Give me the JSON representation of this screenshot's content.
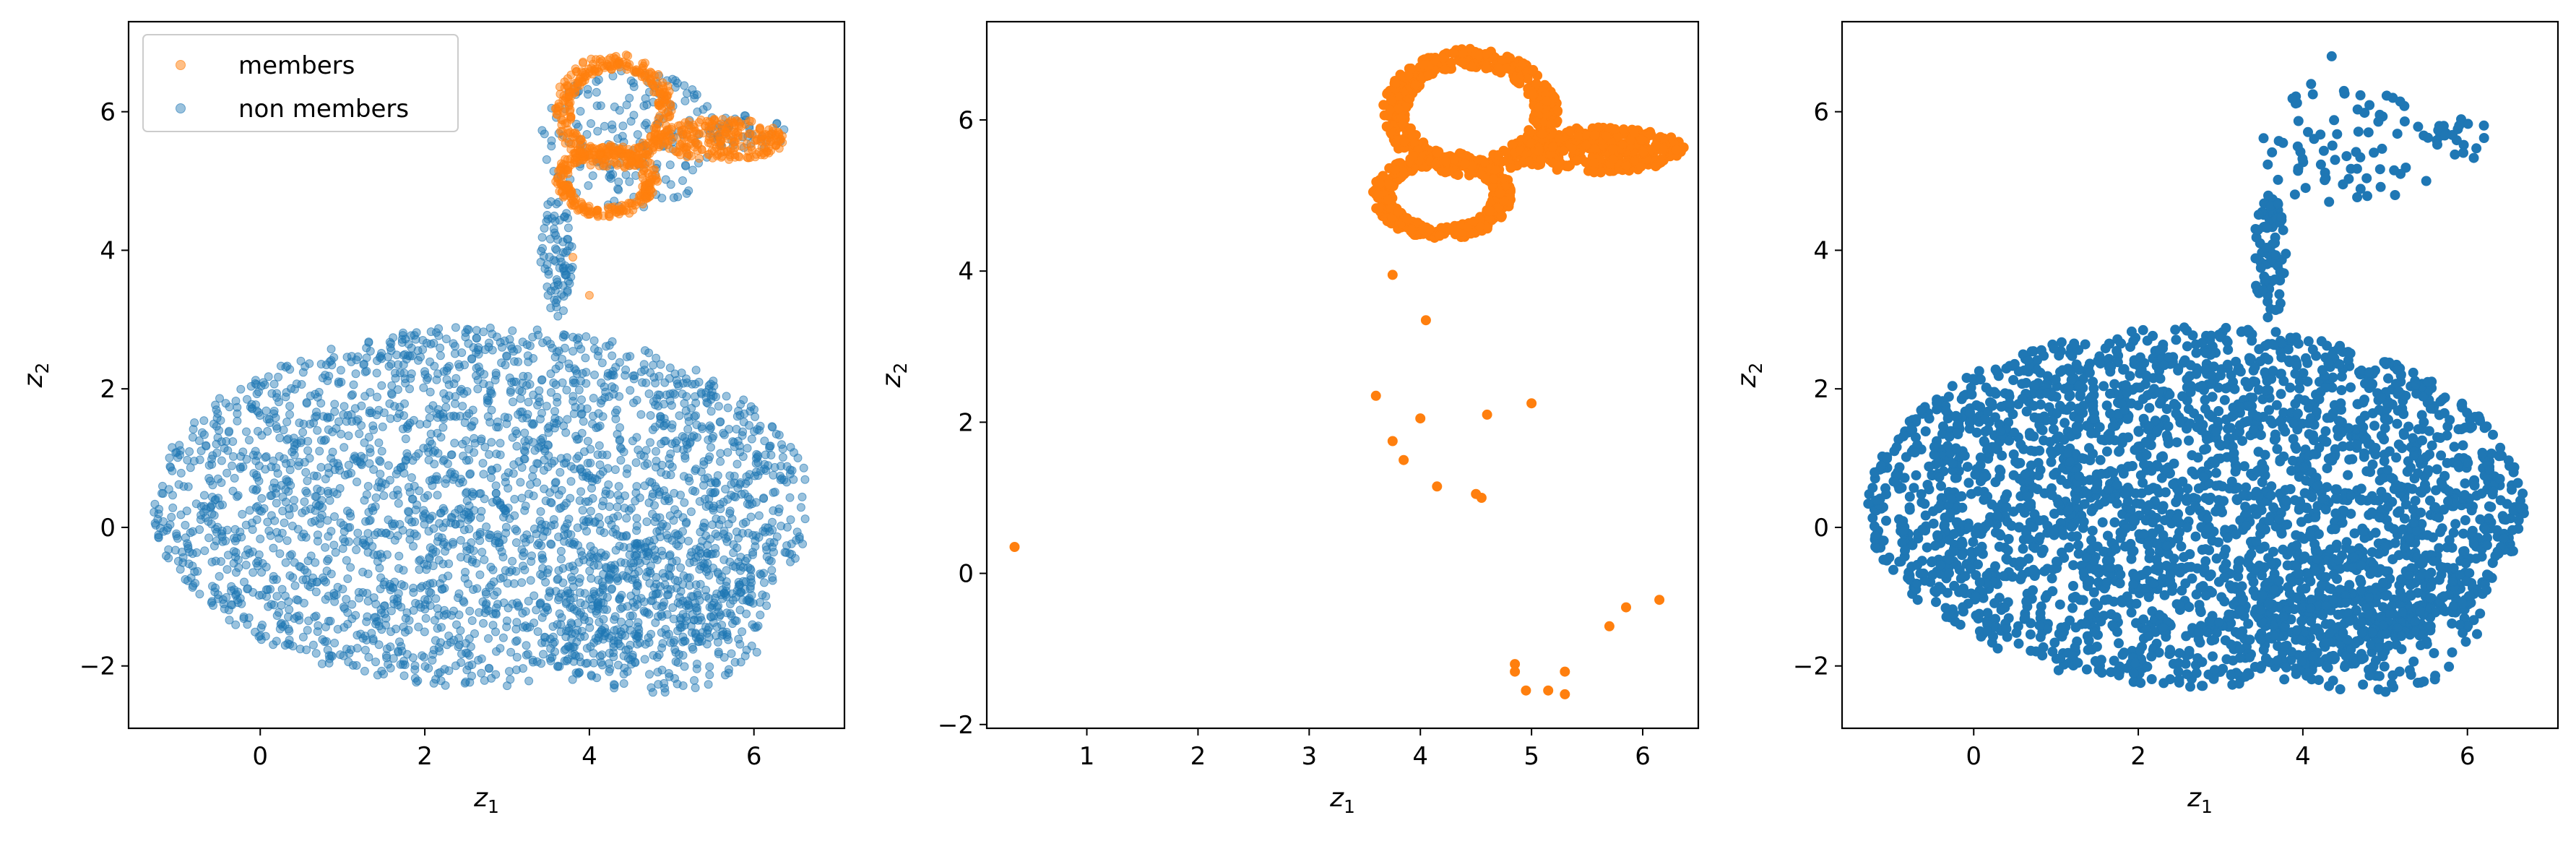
{
  "colors": {
    "members": "#ff7f0e",
    "non_members": "#1f77b4"
  },
  "chart_data": [
    {
      "type": "scatter",
      "xlabel": "z",
      "xlabel_sub": "1",
      "ylabel": "z",
      "ylabel_sub": "2",
      "xlim": [
        -1.6,
        7.1
      ],
      "ylim": [
        -2.9,
        7.3
      ],
      "xticks": [
        0,
        2,
        4,
        6
      ],
      "yticks": [
        -2,
        0,
        2,
        4,
        6
      ],
      "legend": {
        "position": "upper-left",
        "entries": [
          "members",
          "non members"
        ]
      },
      "series": [
        {
          "name": "non members",
          "color": "#1f77b4",
          "alpha": 0.45,
          "clusters": [
            {
              "shape": "ellipse",
              "center": [
                2.7,
                0.3
              ],
              "radius": [
                4.0,
                2.6
              ],
              "count": 2600
            },
            {
              "shape": "ellipse",
              "center": [
                4.8,
                -1.3
              ],
              "radius": [
                1.4,
                1.1
              ],
              "count": 300
            },
            {
              "shape": "ellipse",
              "center": [
                3.6,
                3.9
              ],
              "radius": [
                0.2,
                0.9
              ],
              "count": 80
            },
            {
              "shape": "ellipse",
              "center": [
                4.5,
                5.6
              ],
              "radius": [
                1.1,
                1.0
              ],
              "count": 180
            },
            {
              "shape": "ellipse",
              "center": [
                5.9,
                5.7
              ],
              "radius": [
                0.5,
                0.25
              ],
              "count": 40
            }
          ],
          "points": []
        },
        {
          "name": "members",
          "color": "#ff7f0e",
          "alpha": 0.5,
          "clusters": [
            {
              "shape": "ring",
              "center": [
                4.3,
                6.0
              ],
              "radius": [
                0.7,
                0.8
              ],
              "count": 320
            },
            {
              "shape": "ring",
              "center": [
                4.2,
                5.0
              ],
              "radius": [
                0.6,
                0.5
              ],
              "count": 250
            },
            {
              "shape": "ellipse",
              "center": [
                5.6,
                5.6
              ],
              "radius": [
                0.8,
                0.3
              ],
              "count": 220
            }
          ],
          "points": [
            [
              3.8,
              3.9
            ],
            [
              4.0,
              3.35
            ]
          ]
        }
      ]
    },
    {
      "type": "scatter",
      "xlabel": "z",
      "xlabel_sub": "1",
      "ylabel": "z",
      "ylabel_sub": "2",
      "xlim": [
        0.1,
        6.5
      ],
      "ylim": [
        -2.05,
        7.3
      ],
      "xticks": [
        1,
        2,
        3,
        4,
        5,
        6
      ],
      "yticks": [
        -2,
        0,
        2,
        4,
        6
      ],
      "series": [
        {
          "name": "members",
          "color": "#ff7f0e",
          "alpha": 1,
          "clusters": [
            {
              "shape": "ring",
              "center": [
                4.45,
                6.1
              ],
              "radius": [
                0.75,
                0.8
              ],
              "count": 450
            },
            {
              "shape": "ring",
              "center": [
                4.2,
                5.0
              ],
              "radius": [
                0.6,
                0.55
              ],
              "count": 380
            },
            {
              "shape": "ellipse",
              "center": [
                5.6,
                5.6
              ],
              "radius": [
                0.8,
                0.3
              ],
              "count": 320
            }
          ],
          "points": [
            [
              0.35,
              0.35
            ],
            [
              3.75,
              3.95
            ],
            [
              4.05,
              3.35
            ],
            [
              3.6,
              2.35
            ],
            [
              3.75,
              1.75
            ],
            [
              3.85,
              1.5
            ],
            [
              4.0,
              2.05
            ],
            [
              4.6,
              2.1
            ],
            [
              5.0,
              2.25
            ],
            [
              4.15,
              1.15
            ],
            [
              4.5,
              1.05
            ],
            [
              4.55,
              1.0
            ],
            [
              4.85,
              -1.2
            ],
            [
              4.85,
              -1.3
            ],
            [
              4.95,
              -1.55
            ],
            [
              5.15,
              -1.55
            ],
            [
              5.3,
              -1.3
            ],
            [
              5.3,
              -1.6
            ],
            [
              5.7,
              -0.7
            ],
            [
              5.85,
              -0.45
            ],
            [
              6.15,
              -0.35
            ]
          ]
        }
      ]
    },
    {
      "type": "scatter",
      "xlabel": "z",
      "xlabel_sub": "1",
      "ylabel": "z",
      "ylabel_sub": "2",
      "xlim": [
        -1.6,
        7.1
      ],
      "ylim": [
        -2.9,
        7.3
      ],
      "xticks": [
        0,
        2,
        4,
        6
      ],
      "yticks": [
        -2,
        0,
        2,
        4,
        6
      ],
      "series": [
        {
          "name": "non members",
          "color": "#1f77b4",
          "alpha": 1,
          "clusters": [
            {
              "shape": "ellipse",
              "center": [
                2.7,
                0.3
              ],
              "radius": [
                4.0,
                2.6
              ],
              "count": 2800
            },
            {
              "shape": "ellipse",
              "center": [
                4.8,
                -1.3
              ],
              "radius": [
                1.4,
                1.1
              ],
              "count": 300
            },
            {
              "shape": "ellipse",
              "center": [
                3.6,
                3.9
              ],
              "radius": [
                0.2,
                0.9
              ],
              "count": 70
            },
            {
              "shape": "ellipse",
              "center": [
                4.5,
                5.5
              ],
              "radius": [
                1.0,
                0.9
              ],
              "count": 70
            },
            {
              "shape": "ellipse",
              "center": [
                5.9,
                5.6
              ],
              "radius": [
                0.4,
                0.3
              ],
              "count": 20
            }
          ],
          "points": [
            [
              4.35,
              6.8
            ],
            [
              4.1,
              6.4
            ],
            [
              4.5,
              6.3
            ],
            [
              5.9,
              5.8
            ],
            [
              6.2,
              5.8
            ],
            [
              5.5,
              5.0
            ]
          ]
        }
      ]
    }
  ]
}
